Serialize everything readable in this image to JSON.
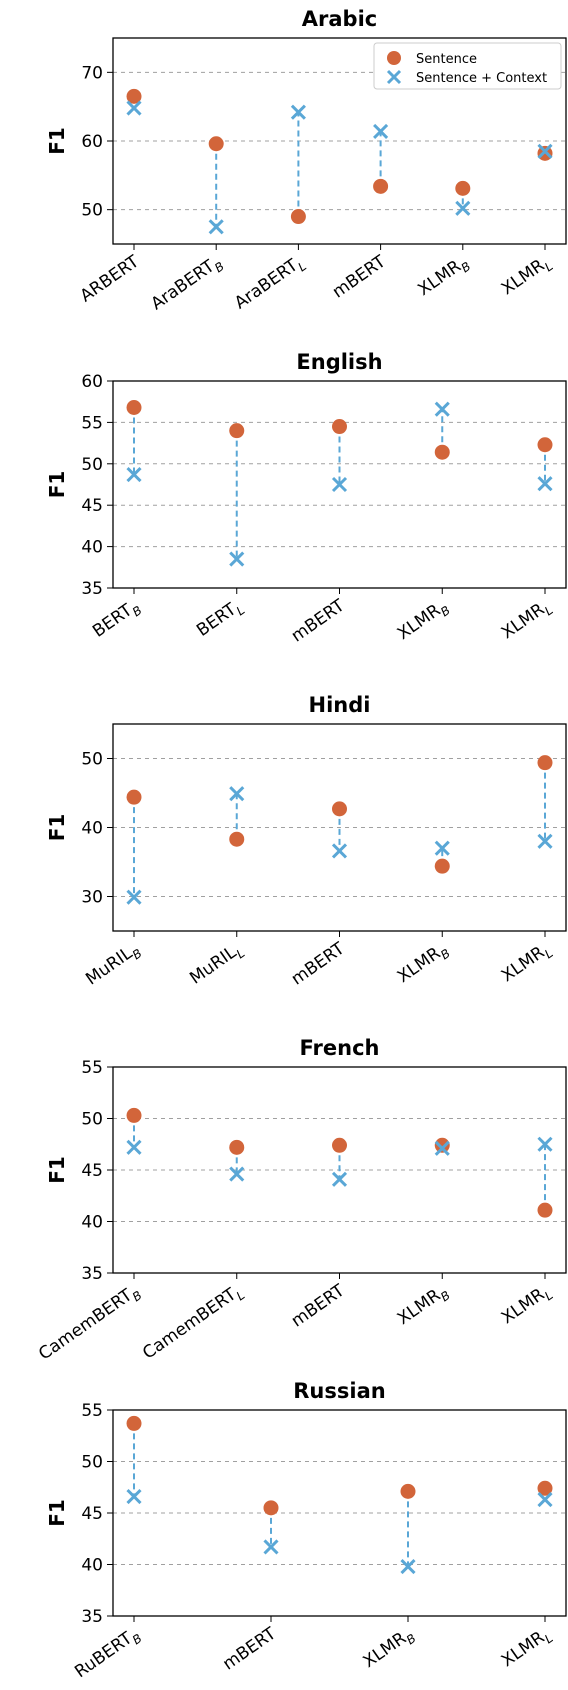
{
  "colors": {
    "sentence": "#d2653a",
    "context": "#5aa7d6",
    "grid": "#a0a0a0"
  },
  "legend": {
    "sentence": "Sentence",
    "context": "Sentence + Context",
    "placement": "top-right"
  },
  "chart_data": [
    {
      "type": "scatter",
      "title": "Arabic",
      "ylabel": "F1",
      "ylim": [
        45,
        75
      ],
      "yticks": [
        50,
        60,
        70
      ],
      "grid": true,
      "show_legend": true,
      "categories": [
        {
          "base": "ARBERT",
          "sub": ""
        },
        {
          "base": "AraBERT",
          "sub": "B"
        },
        {
          "base": "AraBERT",
          "sub": "L"
        },
        {
          "base": "mBERT",
          "sub": ""
        },
        {
          "base": "XLMR",
          "sub": "B"
        },
        {
          "base": "XLMR",
          "sub": "L"
        }
      ],
      "series": [
        {
          "name": "Sentence",
          "values": [
            66.5,
            59.6,
            49.0,
            53.4,
            53.1,
            58.2
          ]
        },
        {
          "name": "Sentence + Context",
          "values": [
            64.8,
            47.5,
            64.2,
            61.4,
            50.2,
            58.5
          ]
        }
      ]
    },
    {
      "type": "scatter",
      "title": "English",
      "ylabel": "F1",
      "ylim": [
        35,
        60
      ],
      "yticks": [
        35,
        40,
        45,
        50,
        55,
        60
      ],
      "grid": true,
      "show_legend": false,
      "categories": [
        {
          "base": "BERT",
          "sub": "B"
        },
        {
          "base": "BERT",
          "sub": "L"
        },
        {
          "base": "mBERT",
          "sub": ""
        },
        {
          "base": "XLMR",
          "sub": "B"
        },
        {
          "base": "XLMR",
          "sub": "L"
        }
      ],
      "series": [
        {
          "name": "Sentence",
          "values": [
            56.8,
            54.0,
            54.5,
            51.4,
            52.3
          ]
        },
        {
          "name": "Sentence + Context",
          "values": [
            48.7,
            38.5,
            47.5,
            56.6,
            47.6
          ]
        }
      ]
    },
    {
      "type": "scatter",
      "title": "Hindi",
      "ylabel": "F1",
      "ylim": [
        25,
        55
      ],
      "yticks": [
        30,
        40,
        50
      ],
      "grid": true,
      "show_legend": false,
      "categories": [
        {
          "base": "MuRIL",
          "sub": "B"
        },
        {
          "base": "MuRIL",
          "sub": "L"
        },
        {
          "base": "mBERT",
          "sub": ""
        },
        {
          "base": "XLMR",
          "sub": "B"
        },
        {
          "base": "XLMR",
          "sub": "L"
        }
      ],
      "series": [
        {
          "name": "Sentence",
          "values": [
            44.4,
            38.3,
            42.7,
            34.4,
            49.4
          ]
        },
        {
          "name": "Sentence + Context",
          "values": [
            29.9,
            44.9,
            36.6,
            37.0,
            38.0
          ]
        }
      ]
    },
    {
      "type": "scatter",
      "title": "French",
      "ylabel": "F1",
      "ylim": [
        35,
        55
      ],
      "yticks": [
        35,
        40,
        45,
        50,
        55
      ],
      "grid": true,
      "show_legend": false,
      "categories": [
        {
          "base": "CamemBERT",
          "sub": "B"
        },
        {
          "base": "CamemBERT",
          "sub": "L"
        },
        {
          "base": "mBERT",
          "sub": ""
        },
        {
          "base": "XLMR",
          "sub": "B"
        },
        {
          "base": "XLMR",
          "sub": "L"
        }
      ],
      "series": [
        {
          "name": "Sentence",
          "values": [
            50.3,
            47.2,
            47.4,
            47.4,
            41.1
          ]
        },
        {
          "name": "Sentence + Context",
          "values": [
            47.2,
            44.6,
            44.1,
            47.1,
            47.5
          ]
        }
      ]
    },
    {
      "type": "scatter",
      "title": "Russian",
      "ylabel": "F1",
      "ylim": [
        35,
        55
      ],
      "yticks": [
        35,
        40,
        45,
        50,
        55
      ],
      "grid": true,
      "show_legend": false,
      "categories": [
        {
          "base": "RuBERT",
          "sub": "B"
        },
        {
          "base": "mBERT",
          "sub": ""
        },
        {
          "base": "XLMR",
          "sub": "B"
        },
        {
          "base": "XLMR",
          "sub": "L"
        }
      ],
      "series": [
        {
          "name": "Sentence",
          "values": [
            53.7,
            45.5,
            47.1,
            47.4
          ]
        },
        {
          "name": "Sentence + Context",
          "values": [
            46.6,
            41.7,
            39.8,
            46.3
          ]
        }
      ]
    }
  ]
}
